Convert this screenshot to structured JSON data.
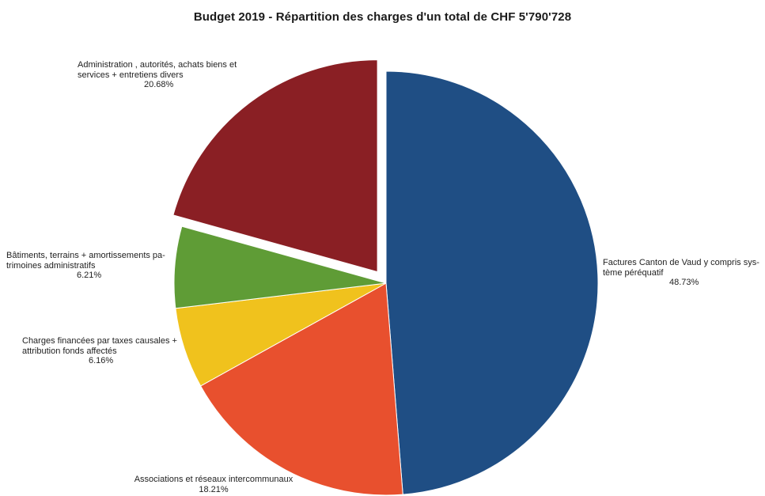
{
  "chart_data": {
    "type": "pie",
    "title": "Budget 2019 - Répartition des charges d'un total de CHF 5'790'728",
    "slices": [
      {
        "label_lines": [
          "Factures Canton  de Vaud y compris sys-",
          "tème péréquatif"
        ],
        "percent_text": "48.73%",
        "value": 48.73,
        "color": "#1f4e84",
        "exploded": false
      },
      {
        "label_lines": [
          "Associations et réseaux intercommunaux"
        ],
        "percent_text": "18.21%",
        "value": 18.21,
        "color": "#e8502e",
        "exploded": false
      },
      {
        "label_lines": [
          "Charges financées par taxes causales +",
          "attribution fonds affectés"
        ],
        "percent_text": "6.16%",
        "value": 6.16,
        "color": "#f0c21d",
        "exploded": false
      },
      {
        "label_lines": [
          "Bâtiments, terrains + amortissements pa-",
          "trimoines administratifs"
        ],
        "percent_text": "6.21%",
        "value": 6.21,
        "color": "#5f9c36",
        "exploded": false
      },
      {
        "label_lines": [
          "Administration , autorités, achats biens et",
          "services + entretiens divers"
        ],
        "percent_text": "20.68%",
        "value": 20.68,
        "color": "#8a1f24",
        "exploded": true
      }
    ]
  }
}
